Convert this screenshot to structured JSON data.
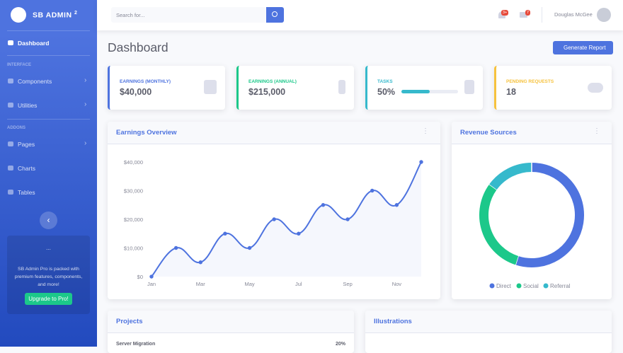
{
  "sidebar": {
    "brand": "SB ADMIN",
    "brand_sup": "2",
    "items": [
      {
        "label": "Dashboard"
      },
      {
        "heading": "INTERFACE"
      },
      {
        "label": "Components"
      },
      {
        "label": "Utilities"
      },
      {
        "heading": "ADDONS"
      },
      {
        "label": "Pages"
      },
      {
        "label": "Charts"
      },
      {
        "label": "Tables"
      }
    ],
    "promo": {
      "image": "...",
      "text": "SB Admin Pro is packed with premium features, components, and more!",
      "button": "Upgrade to Pro!"
    }
  },
  "topbar": {
    "search_placeholder": "Search for...",
    "alerts_badge": "3+",
    "messages_badge": "7",
    "user": "Douglas McGee"
  },
  "page_title": "Dashboard",
  "report_button": "Generate Report",
  "cards": [
    {
      "title": "EARNINGS (MONTHLY)",
      "value": "$40,000"
    },
    {
      "title": "EARNINGS (ANNUAL)",
      "value": "$215,000"
    },
    {
      "title": "TASKS",
      "value": 50,
      "value_label": "50%"
    },
    {
      "title": "PENDING REQUESTS",
      "value": "18"
    }
  ],
  "chart_data": [
    {
      "type": "line",
      "title": "Earnings Overview",
      "categories": [
        "Jan",
        null,
        "Mar",
        null,
        "May",
        null,
        "Jul",
        null,
        "Sep",
        null,
        "Nov",
        null
      ],
      "series": [
        {
          "name": "Earnings",
          "color": "#4e73df",
          "values": [
            0,
            10000,
            5000,
            15000,
            10000,
            20000,
            15000,
            25000,
            20000,
            30000,
            25000,
            40000
          ]
        }
      ],
      "ylim": [
        0,
        40000
      ],
      "yticks": [
        {
          "value": 0,
          "label": "$0"
        },
        {
          "value": 10000,
          "label": "$10,000"
        },
        {
          "value": 20000,
          "label": "$20,000"
        },
        {
          "value": 30000,
          "label": "$30,000"
        },
        {
          "value": 40000,
          "label": "$40,000"
        }
      ],
      "grid": false
    },
    {
      "type": "pie",
      "title": "Revenue Sources",
      "labels": [
        "Direct",
        "Social",
        "Referral"
      ],
      "values": [
        55,
        30,
        15
      ],
      "colors": [
        "#4e73df",
        "#1cc88a",
        "#36b9cc"
      ]
    }
  ],
  "bottom": {
    "projects": {
      "title": "Projects",
      "row": {
        "name": "Server Migration",
        "value": "20%"
      }
    },
    "illustrations": {
      "title": "Illustrations"
    }
  }
}
